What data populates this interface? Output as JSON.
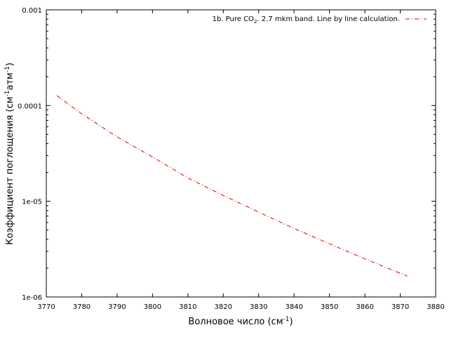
{
  "chart_data": {
    "type": "line",
    "title": "",
    "xlabel": "Волновое число (см",
    "xlabel_sup": "-1",
    "xlabel_end": ")",
    "ylabel": "Коэффициент поглощения (см",
    "ylabel_sup1": "-1",
    "ylabel_mid": "атм",
    "ylabel_sup2": "-1",
    "ylabel_end": ")",
    "xlim": [
      3770,
      3880
    ],
    "ylim": [
      1e-06,
      0.001
    ],
    "y_scale": "log",
    "x_ticks": [
      3770,
      3780,
      3790,
      3800,
      3810,
      3820,
      3830,
      3840,
      3850,
      3860,
      3870,
      3880
    ],
    "x_tick_labels": [
      "3770",
      "3780",
      "3790",
      "3800",
      "3810",
      "3820",
      "3830",
      "3840",
      "3850",
      "3860",
      "3870",
      "3880"
    ],
    "y_ticks": [
      1e-06,
      1e-05,
      0.0001,
      0.001
    ],
    "y_tick_labels": [
      "1e-06",
      "1e-05",
      "0.0001",
      "0.001"
    ],
    "grid": false,
    "legend_position": "top-right",
    "series": [
      {
        "name": "1b. Pure CO",
        "name_sub": "2",
        "name_end": ". 2.7 mkm band. Line by line calculation.",
        "color": "#e00000",
        "line_style": "dash-dot",
        "x": [
          3773,
          3780,
          3790,
          3800,
          3810,
          3820,
          3830,
          3840,
          3850,
          3860,
          3872
        ],
        "y": [
          0.000127,
          8.2e-05,
          4.7e-05,
          2.9e-05,
          1.75e-05,
          1.15e-05,
          7.7e-06,
          5.2e-06,
          3.6e-06,
          2.5e-06,
          1.65e-06
        ]
      }
    ]
  }
}
